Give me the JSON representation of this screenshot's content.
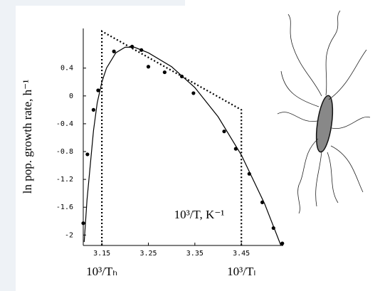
{
  "chart_data": {
    "type": "scatter",
    "y_label": "ln pop. growth rate, h⁻¹",
    "annotations": [
      "10³/T, K⁻¹",
      "10³/Tₕ",
      "10³/Tₗ"
    ],
    "xlim": [
      3.11,
      3.54
    ],
    "ylim": [
      -2.15,
      0.97
    ],
    "xticks": [
      3.15,
      3.25,
      3.35,
      3.45
    ],
    "yticks": [
      0.4,
      0,
      -0.4,
      -0.8,
      -1.2,
      -1.6,
      -2
    ],
    "series": [
      {
        "style": "points",
        "color": "#000000",
        "x": [
          3.11,
          3.119,
          3.132,
          3.142,
          3.176,
          3.215,
          3.235,
          3.25,
          3.285,
          3.322,
          3.347,
          3.413,
          3.438,
          3.467,
          3.495,
          3.519,
          3.538
        ],
        "values": [
          -1.83,
          -0.84,
          -0.2,
          0.08,
          0.64,
          0.71,
          0.66,
          0.42,
          0.34,
          0.28,
          0.04,
          -0.51,
          -0.76,
          -1.12,
          -1.53,
          -1.9,
          -2.12
        ]
      },
      {
        "style": "solid",
        "color": "#000000",
        "x": [
          3.112,
          3.118,
          3.125,
          3.132,
          3.14,
          3.15,
          3.16,
          3.18,
          3.2,
          3.22,
          3.25,
          3.3,
          3.35,
          3.4,
          3.45,
          3.5,
          3.535
        ],
        "values": [
          -2.1,
          -1.5,
          -1.0,
          -0.5,
          -0.1,
          0.2,
          0.4,
          0.62,
          0.7,
          0.7,
          0.62,
          0.42,
          0.12,
          -0.3,
          -0.85,
          -1.55,
          -2.15
        ]
      },
      {
        "style": "dotted",
        "color": "#000000",
        "x": [
          3.15,
          3.15,
          3.45,
          3.45
        ],
        "values": [
          -2.15,
          0.93,
          -0.2,
          -2.15
        ]
      }
    ]
  }
}
